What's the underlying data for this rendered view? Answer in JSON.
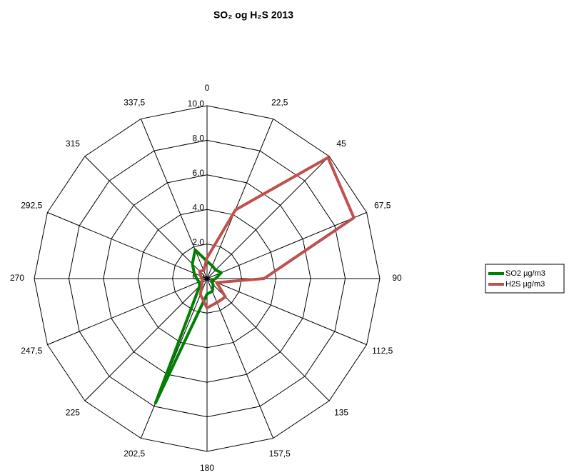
{
  "chart_data": {
    "type": "radar",
    "title": "SO₂ og H₂S 2013",
    "categories": [
      "0",
      "22,5",
      "45",
      "67,5",
      "90",
      "112,5",
      "135",
      "157,5",
      "180",
      "202,5",
      "225",
      "247,5",
      "270",
      "292,5",
      "315",
      "337,5"
    ],
    "series": [
      {
        "name": "SO2 µg/m3",
        "color": "#008000",
        "values": [
          1.0,
          0.8,
          0.7,
          0.9,
          0.5,
          0.3,
          0.5,
          0.8,
          0.9,
          7.8,
          0.6,
          0.5,
          0.6,
          0.8,
          1.2,
          1.8
        ]
      },
      {
        "name": "H2S µg/m3",
        "color": "#c0504d",
        "values": [
          1.2,
          4.3,
          9.9,
          9.2,
          3.3,
          0.6,
          1.5,
          1.5,
          1.7,
          1.0,
          0.4,
          0.3,
          0.3,
          0.4,
          0.6,
          0.5
        ]
      }
    ],
    "rlim": [
      0,
      10
    ],
    "rticks": [
      {
        "value": 0,
        "label": "0,0"
      },
      {
        "value": 2,
        "label": "2,0"
      },
      {
        "value": 4,
        "label": "4,0"
      },
      {
        "value": 6,
        "label": "6,0"
      },
      {
        "value": 8,
        "label": "8,0"
      },
      {
        "value": 10,
        "label": "10,0"
      }
    ],
    "legend": "right"
  }
}
